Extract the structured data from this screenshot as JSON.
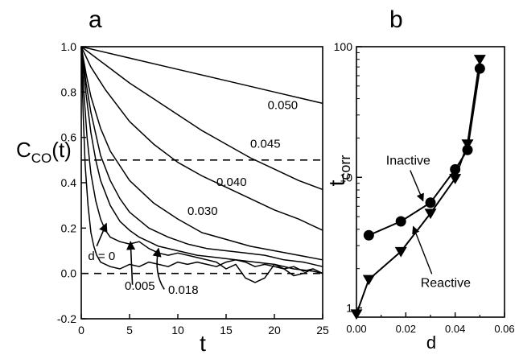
{
  "chart_data": [
    {
      "type": "line",
      "panel_label": "a",
      "xlabel": "t",
      "ylabel_main": "C",
      "ylabel_sub": "CO",
      "ylabel_suffix": "(t)",
      "xlim": [
        0,
        25
      ],
      "ylim": [
        -0.2,
        1.0
      ],
      "xticks": [
        0,
        5,
        10,
        15,
        20,
        25
      ],
      "yticks": [
        -0.2,
        0.0,
        0.2,
        0.4,
        0.6,
        0.8,
        1.0
      ],
      "ytick_labels": [
        "-0.2",
        "0.0",
        "0.2",
        "0.4",
        "0.6",
        "0.8",
        "1.0"
      ],
      "reference_lines": [
        0.5,
        0.0
      ],
      "series": [
        {
          "name": "0.050",
          "x": [
            0,
            5,
            10,
            15,
            20,
            25
          ],
          "y": [
            1.0,
            0.95,
            0.9,
            0.85,
            0.8,
            0.75
          ]
        },
        {
          "name": "0.045",
          "x": [
            0,
            2.5,
            5,
            7.5,
            10,
            12.5,
            15,
            17.5,
            20,
            22.5,
            25
          ],
          "y": [
            1.0,
            0.92,
            0.84,
            0.77,
            0.7,
            0.63,
            0.57,
            0.51,
            0.46,
            0.41,
            0.37
          ]
        },
        {
          "name": "0.040",
          "x": [
            0,
            1,
            2.5,
            5,
            7.5,
            10,
            12.5,
            15,
            17.5,
            20,
            22.5,
            25
          ],
          "y": [
            1.0,
            0.91,
            0.81,
            0.67,
            0.57,
            0.49,
            0.43,
            0.38,
            0.33,
            0.28,
            0.24,
            0.19
          ]
        },
        {
          "name": "0.030",
          "x": [
            0,
            0.5,
            1,
            2,
            3,
            5,
            7.5,
            10,
            12.5,
            15,
            17.5,
            20,
            22.5,
            25
          ],
          "y": [
            1.0,
            0.88,
            0.78,
            0.64,
            0.54,
            0.41,
            0.31,
            0.24,
            0.18,
            0.15,
            0.12,
            0.1,
            0.08,
            0.06
          ]
        },
        {
          "name": "",
          "x": [
            0,
            0.5,
            1,
            2,
            3,
            4,
            5,
            7,
            9,
            11,
            13,
            15,
            17,
            19,
            21,
            23,
            25
          ],
          "y": [
            1.0,
            0.84,
            0.71,
            0.52,
            0.41,
            0.33,
            0.27,
            0.2,
            0.16,
            0.13,
            0.11,
            0.1,
            0.09,
            0.08,
            0.06,
            0.05,
            0.03
          ]
        },
        {
          "name": "0.018",
          "x": [
            0,
            0.5,
            1,
            1.5,
            2,
            3,
            4,
            5,
            6,
            7,
            8,
            10,
            12,
            14,
            16,
            18,
            20,
            22,
            24,
            25
          ],
          "y": [
            1.0,
            0.79,
            0.62,
            0.5,
            0.41,
            0.3,
            0.23,
            0.19,
            0.16,
            0.14,
            0.12,
            0.1,
            0.08,
            0.07,
            0.06,
            0.05,
            0.04,
            0.02,
            0.01,
            0.0
          ]
        },
        {
          "name": "0.005",
          "x": [
            0,
            0.3,
            0.6,
            1,
            1.5,
            2,
            2.5,
            3,
            4,
            5,
            6,
            7,
            8,
            9,
            10,
            12,
            14,
            15,
            16,
            17,
            18,
            19,
            20,
            21,
            22,
            23,
            24,
            25
          ],
          "y": [
            1.0,
            0.78,
            0.6,
            0.44,
            0.32,
            0.24,
            0.19,
            0.16,
            0.14,
            0.13,
            0.14,
            0.11,
            0.09,
            0.08,
            0.09,
            0.07,
            0.05,
            0.02,
            0.04,
            -0.02,
            -0.04,
            -0.02,
            0.04,
            0.02,
            -0.01,
            0.0,
            0.02,
            0.0
          ]
        },
        {
          "name": "d = 0",
          "x": [
            0,
            0.2,
            0.4,
            0.7,
            1,
            1.3,
            1.6,
            2,
            3,
            4,
            5,
            6,
            7,
            8,
            9,
            10,
            11,
            12,
            13,
            14,
            15,
            16,
            17,
            18,
            19,
            20,
            21,
            22,
            23,
            24,
            25
          ],
          "y": [
            1.0,
            0.7,
            0.48,
            0.3,
            0.18,
            0.12,
            0.08,
            0.05,
            0.03,
            0.02,
            0.04,
            0.03,
            0.05,
            0.04,
            0.03,
            0.05,
            0.04,
            0.05,
            0.04,
            0.03,
            0.05,
            0.06,
            0.05,
            0.03,
            0.04,
            0.03,
            0.02,
            0.03,
            0.01,
            0.02,
            0.0
          ]
        }
      ],
      "annotations": [
        {
          "text": "0.050",
          "x": 19.3,
          "y": 0.725
        },
        {
          "text": "0.045",
          "x": 17.5,
          "y": 0.555
        },
        {
          "text": "0.040",
          "x": 14.0,
          "y": 0.385
        },
        {
          "text": "0.030",
          "x": 11.0,
          "y": 0.258
        },
        {
          "text": "d = 0",
          "x": 0.7,
          "y": 0.06
        },
        {
          "text": "0.005",
          "x": 4.5,
          "y": -0.072
        },
        {
          "text": "0.018",
          "x": 9.0,
          "y": -0.09
        }
      ],
      "arrows": [
        {
          "from": [
            1.6,
            0.12
          ],
          "to": [
            2.6,
            0.22
          ]
        },
        {
          "from": [
            5.3,
            -0.05
          ],
          "to": [
            5.1,
            0.14
          ]
        },
        {
          "from": [
            8.6,
            -0.07
          ],
          "to": [
            8.0,
            0.11
          ],
          "curve_via": [
            7.5,
            0.0
          ]
        }
      ]
    },
    {
      "type": "line",
      "panel_label": "b",
      "xlabel": "d",
      "ylabel_main": "t",
      "ylabel_sub": "corr",
      "xlim": [
        0.0,
        0.06
      ],
      "ylim": [
        0.85,
        100
      ],
      "yscale": "log",
      "xticks": [
        0.0,
        0.02,
        0.04,
        0.06
      ],
      "xtick_labels": [
        "0.00",
        "0.02",
        "0.04",
        "0.06"
      ],
      "yticks": [
        1,
        10,
        100
      ],
      "ytick_labels": [
        "1",
        "10",
        "100"
      ],
      "series": [
        {
          "name": "Inactive",
          "marker": "circle",
          "x": [
            0.005,
            0.018,
            0.03,
            0.04,
            0.045,
            0.05
          ],
          "y": [
            3.6,
            4.6,
            6.4,
            11.5,
            16.2,
            68
          ]
        },
        {
          "name": "Reactive",
          "marker": "triangle-down",
          "x": [
            0.0,
            0.005,
            0.018,
            0.03,
            0.04,
            0.045,
            0.05
          ],
          "y": [
            0.9,
            1.65,
            2.7,
            5.3,
            9.8,
            18,
            80
          ]
        }
      ],
      "labels": [
        {
          "text": "Inactive",
          "x": 0.012,
          "y": 12.5,
          "arrow_to": [
            0.027,
            6.6
          ]
        },
        {
          "text": "Reactive",
          "x": 0.026,
          "y": 1.45,
          "arrow_to": [
            0.023,
            4.2
          ]
        }
      ]
    }
  ]
}
